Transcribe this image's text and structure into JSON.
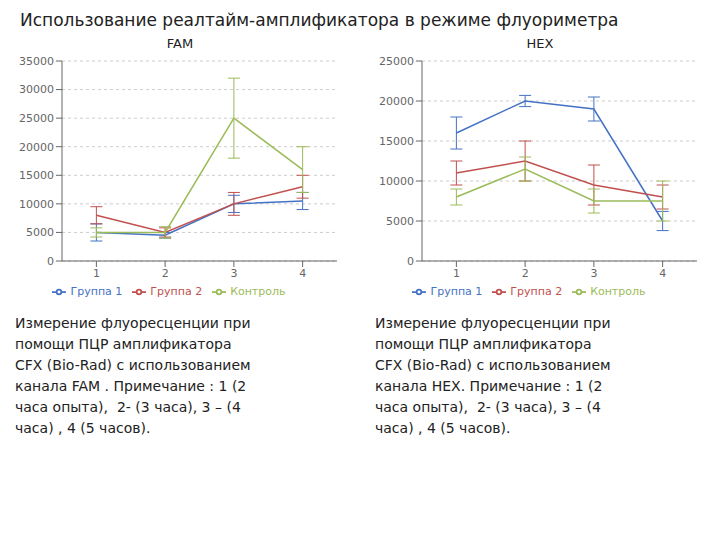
{
  "title": "Использование реалтайм-амплификатора в режиме флуориметра",
  "chart_data": [
    {
      "type": "line",
      "title": "FAM",
      "x": [
        1,
        2,
        3,
        4
      ],
      "xlim": [
        0.5,
        4.5
      ],
      "xticks": [
        1,
        2,
        3,
        4
      ],
      "ylim": [
        0,
        35000
      ],
      "yticks": [
        0,
        5000,
        10000,
        15000,
        20000,
        25000,
        30000,
        35000
      ],
      "grid": true,
      "legend": "bottom",
      "series": [
        {
          "name": "Группа 1",
          "color": "#4472C4",
          "values": [
            5000,
            4500,
            10000,
            10500
          ],
          "errors": [
            1500,
            500,
            1500,
            1500
          ]
        },
        {
          "name": "Группа 2",
          "color": "#C0504D",
          "values": [
            8000,
            5000,
            10000,
            13000
          ],
          "errors": [
            1500,
            800,
            2000,
            2000
          ]
        },
        {
          "name": "Контроль",
          "color": "#9BBB59",
          "values": [
            5000,
            5000,
            25000,
            16000
          ],
          "errors": [
            800,
            1000,
            7000,
            4000
          ]
        }
      ],
      "annotations": [
        "Измерение флуоресценции при",
        "помощи ПЦР амплификатора",
        "CFX (Bio-Rad) с использованием",
        "канала FAM . Примечание : 1 (2",
        "часа опыта),  2- (3 часа), 3 – (4",
        "часа) , 4 (5 часов)."
      ]
    },
    {
      "type": "line",
      "title": "HEX",
      "x": [
        1,
        2,
        3,
        4
      ],
      "xlim": [
        0.5,
        4.5
      ],
      "xticks": [
        1,
        2,
        3,
        4
      ],
      "ylim": [
        0,
        25000
      ],
      "yticks": [
        0,
        5000,
        10000,
        15000,
        20000,
        25000
      ],
      "grid": true,
      "legend": "bottom",
      "series": [
        {
          "name": "Группа 1",
          "color": "#4472C4",
          "values": [
            16000,
            20000,
            19000,
            5000
          ],
          "errors": [
            2000,
            700,
            1500,
            1200
          ]
        },
        {
          "name": "Группа 2",
          "color": "#C0504D",
          "values": [
            11000,
            12500,
            9500,
            8000
          ],
          "errors": [
            1500,
            2500,
            2500,
            1500
          ]
        },
        {
          "name": "Контроль",
          "color": "#9BBB59",
          "values": [
            8000,
            11500,
            7500,
            7500
          ],
          "errors": [
            1000,
            1500,
            1500,
            2500
          ]
        }
      ],
      "annotations": [
        "Измерение флуоресценции при",
        "помощи ПЦР амплификатора",
        "CFX (Bio-Rad) с использованием",
        "канала HEX. Примечание : 1 (2",
        "часа опыта),  2- (3 часа), 3 – (4",
        "часа) , 4 (5 часов)."
      ]
    }
  ]
}
